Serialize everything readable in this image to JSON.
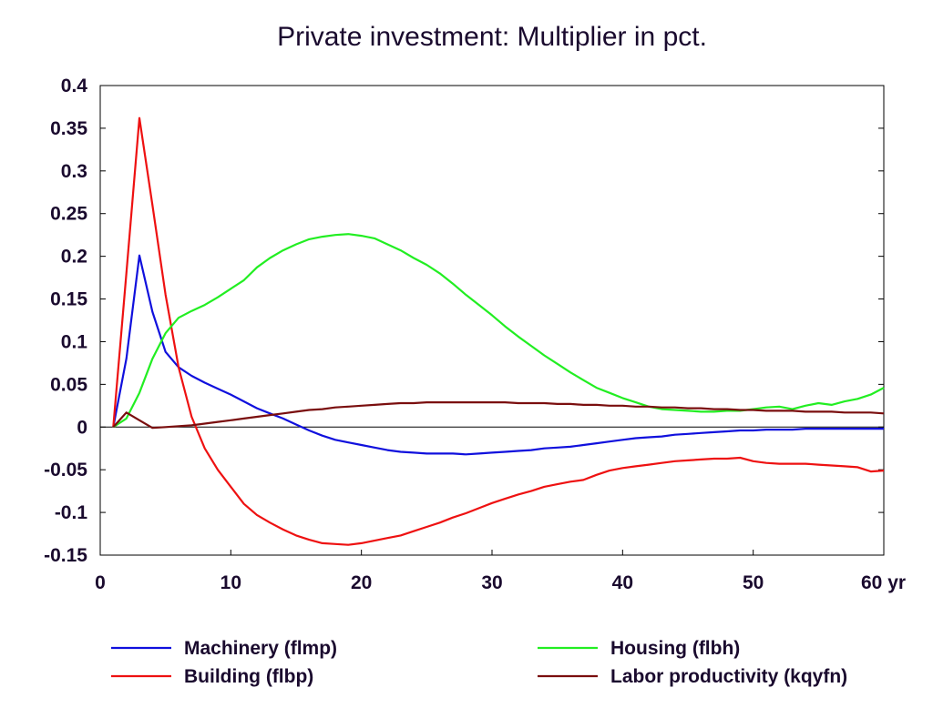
{
  "chart_data": {
    "type": "line",
    "title": "Private investment: Multiplier in pct.",
    "xlabel": "",
    "ylabel": "",
    "x_unit": "yr",
    "xlim": [
      0,
      60
    ],
    "ylim": [
      -0.15,
      0.4
    ],
    "xticks": [
      0,
      10,
      20,
      30,
      40,
      50,
      60
    ],
    "yticks": [
      0.4,
      0.35,
      0.3,
      0.25,
      0.2,
      0.15,
      0.1,
      0.05,
      0,
      -0.05,
      -0.1,
      -0.15
    ],
    "ytick_labels": [
      "0.4",
      "0.35",
      "0.3",
      "0.25",
      "0.2",
      "0.15",
      "0.1",
      "0.05",
      "0",
      "-0.05",
      "-0.1",
      "-0.15"
    ],
    "xtick_labels": [
      "0",
      "10",
      "20",
      "30",
      "40",
      "50",
      "60 yr"
    ],
    "grid": false,
    "zero_line": true,
    "legend_position": "bottom",
    "x": [
      1,
      2,
      3,
      4,
      5,
      6,
      7,
      8,
      9,
      10,
      11,
      12,
      13,
      14,
      15,
      16,
      17,
      18,
      19,
      20,
      21,
      22,
      23,
      24,
      25,
      26,
      27,
      28,
      29,
      30,
      31,
      32,
      33,
      34,
      35,
      36,
      37,
      38,
      39,
      40,
      41,
      42,
      43,
      44,
      45,
      46,
      47,
      48,
      49,
      50,
      51,
      52,
      53,
      54,
      55,
      56,
      57,
      58,
      59,
      60
    ],
    "series": [
      {
        "name": "Machinery (flmp)",
        "color": "#1010dd",
        "values": [
          0,
          0.08,
          0.201,
          0.135,
          0.088,
          0.07,
          0.06,
          0.052,
          0.045,
          0.038,
          0.03,
          0.022,
          0.016,
          0.01,
          0.003,
          -0.004,
          -0.01,
          -0.015,
          -0.018,
          -0.021,
          -0.024,
          -0.027,
          -0.029,
          -0.03,
          -0.031,
          -0.031,
          -0.031,
          -0.032,
          -0.031,
          -0.03,
          -0.029,
          -0.028,
          -0.027,
          -0.025,
          -0.024,
          -0.023,
          -0.021,
          -0.019,
          -0.017,
          -0.015,
          -0.013,
          -0.012,
          -0.011,
          -0.009,
          -0.008,
          -0.007,
          -0.006,
          -0.005,
          -0.004,
          -0.004,
          -0.003,
          -0.003,
          -0.003,
          -0.002,
          -0.002,
          -0.002,
          -0.002,
          -0.002,
          -0.002,
          -0.002
        ]
      },
      {
        "name": "Building (flbp)",
        "color": "#ee1111",
        "values": [
          0,
          0.18,
          0.362,
          0.26,
          0.155,
          0.07,
          0.012,
          -0.025,
          -0.05,
          -0.07,
          -0.09,
          -0.103,
          -0.112,
          -0.12,
          -0.127,
          -0.132,
          -0.136,
          -0.137,
          -0.138,
          -0.136,
          -0.133,
          -0.13,
          -0.127,
          -0.122,
          -0.117,
          -0.112,
          -0.106,
          -0.101,
          -0.095,
          -0.089,
          -0.084,
          -0.079,
          -0.075,
          -0.07,
          -0.067,
          -0.064,
          -0.062,
          -0.056,
          -0.051,
          -0.048,
          -0.046,
          -0.044,
          -0.042,
          -0.04,
          -0.039,
          -0.038,
          -0.037,
          -0.037,
          -0.036,
          -0.04,
          -0.042,
          -0.043,
          -0.043,
          -0.043,
          -0.044,
          -0.045,
          -0.046,
          -0.047,
          -0.052,
          -0.051
        ]
      },
      {
        "name": "Housing (flbh)",
        "color": "#22ee22",
        "values": [
          0,
          0.01,
          0.04,
          0.08,
          0.11,
          0.128,
          0.136,
          0.143,
          0.152,
          0.162,
          0.172,
          0.187,
          0.198,
          0.207,
          0.214,
          0.22,
          0.223,
          0.225,
          0.226,
          0.224,
          0.221,
          0.214,
          0.207,
          0.198,
          0.19,
          0.18,
          0.168,
          0.155,
          0.143,
          0.131,
          0.118,
          0.106,
          0.095,
          0.084,
          0.074,
          0.064,
          0.055,
          0.046,
          0.04,
          0.034,
          0.029,
          0.024,
          0.021,
          0.02,
          0.019,
          0.018,
          0.018,
          0.019,
          0.019,
          0.021,
          0.023,
          0.024,
          0.021,
          0.025,
          0.028,
          0.026,
          0.03,
          0.033,
          0.038,
          0.046
        ]
      },
      {
        "name": "Labor productivity (kqyfn)",
        "color": "#7a0e0e",
        "values": [
          0,
          0.017,
          0.008,
          -0.001,
          0,
          0.001,
          0.002,
          0.004,
          0.006,
          0.008,
          0.01,
          0.012,
          0.014,
          0.016,
          0.018,
          0.02,
          0.021,
          0.023,
          0.024,
          0.025,
          0.026,
          0.027,
          0.028,
          0.028,
          0.029,
          0.029,
          0.029,
          0.029,
          0.029,
          0.029,
          0.029,
          0.028,
          0.028,
          0.028,
          0.027,
          0.027,
          0.026,
          0.026,
          0.025,
          0.025,
          0.024,
          0.024,
          0.023,
          0.023,
          0.022,
          0.022,
          0.021,
          0.021,
          0.02,
          0.02,
          0.019,
          0.019,
          0.019,
          0.018,
          0.018,
          0.018,
          0.017,
          0.017,
          0.017,
          0.016
        ]
      }
    ]
  }
}
